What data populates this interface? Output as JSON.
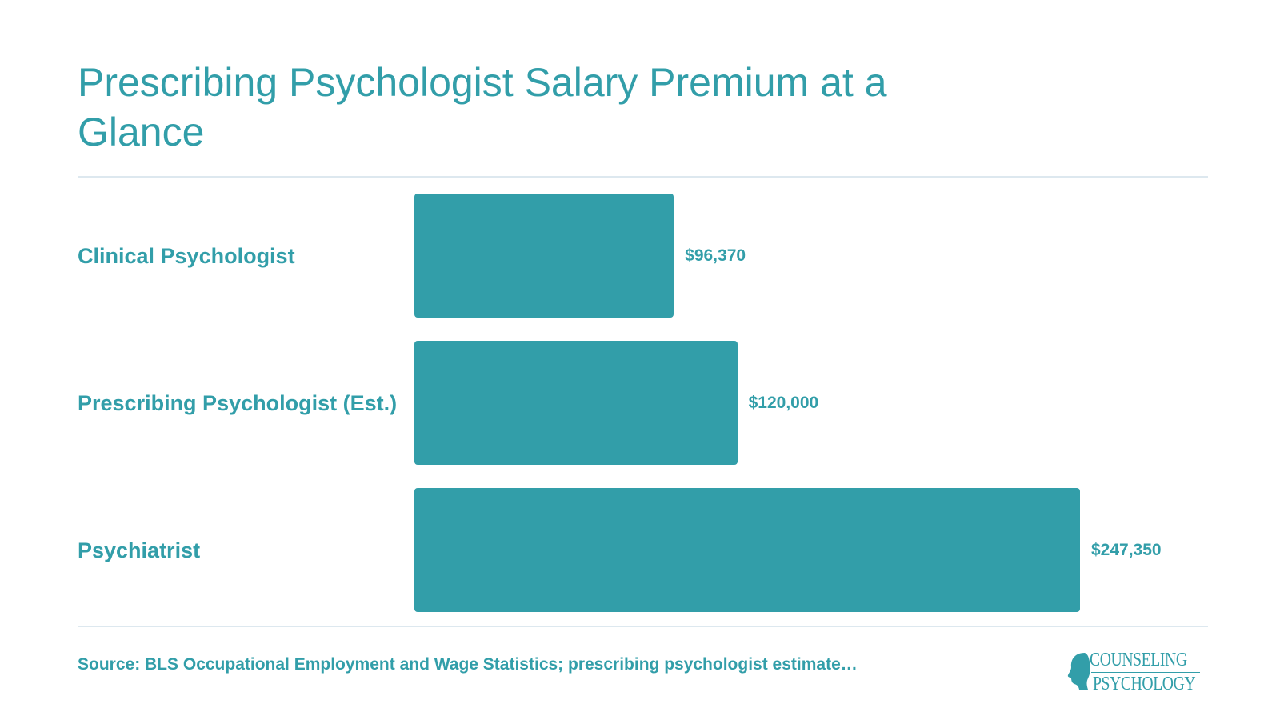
{
  "chart_data": {
    "type": "bar",
    "orientation": "horizontal",
    "title": "Prescribing Psychologist Salary Premium at a Glance",
    "categories": [
      "Clinical Psychologist",
      "Prescribing Psychologist (Est.)",
      "Psychiatrist"
    ],
    "values": [
      96370,
      120000,
      247350
    ],
    "value_labels": [
      "$96,370",
      "$120,000",
      "$247,350"
    ],
    "xlim": [
      0,
      247350
    ],
    "grid": false,
    "legend": "none"
  },
  "source": "Source: BLS Occupational Employment and Wage Statistics; prescribing psychologist estimate…",
  "logo": {
    "line1": "COUNSELING",
    "line2": "PSYCHOLOGY"
  },
  "colors": {
    "accent": "#329ea9",
    "rule": "#dde8ef",
    "background": "#ffffff"
  }
}
